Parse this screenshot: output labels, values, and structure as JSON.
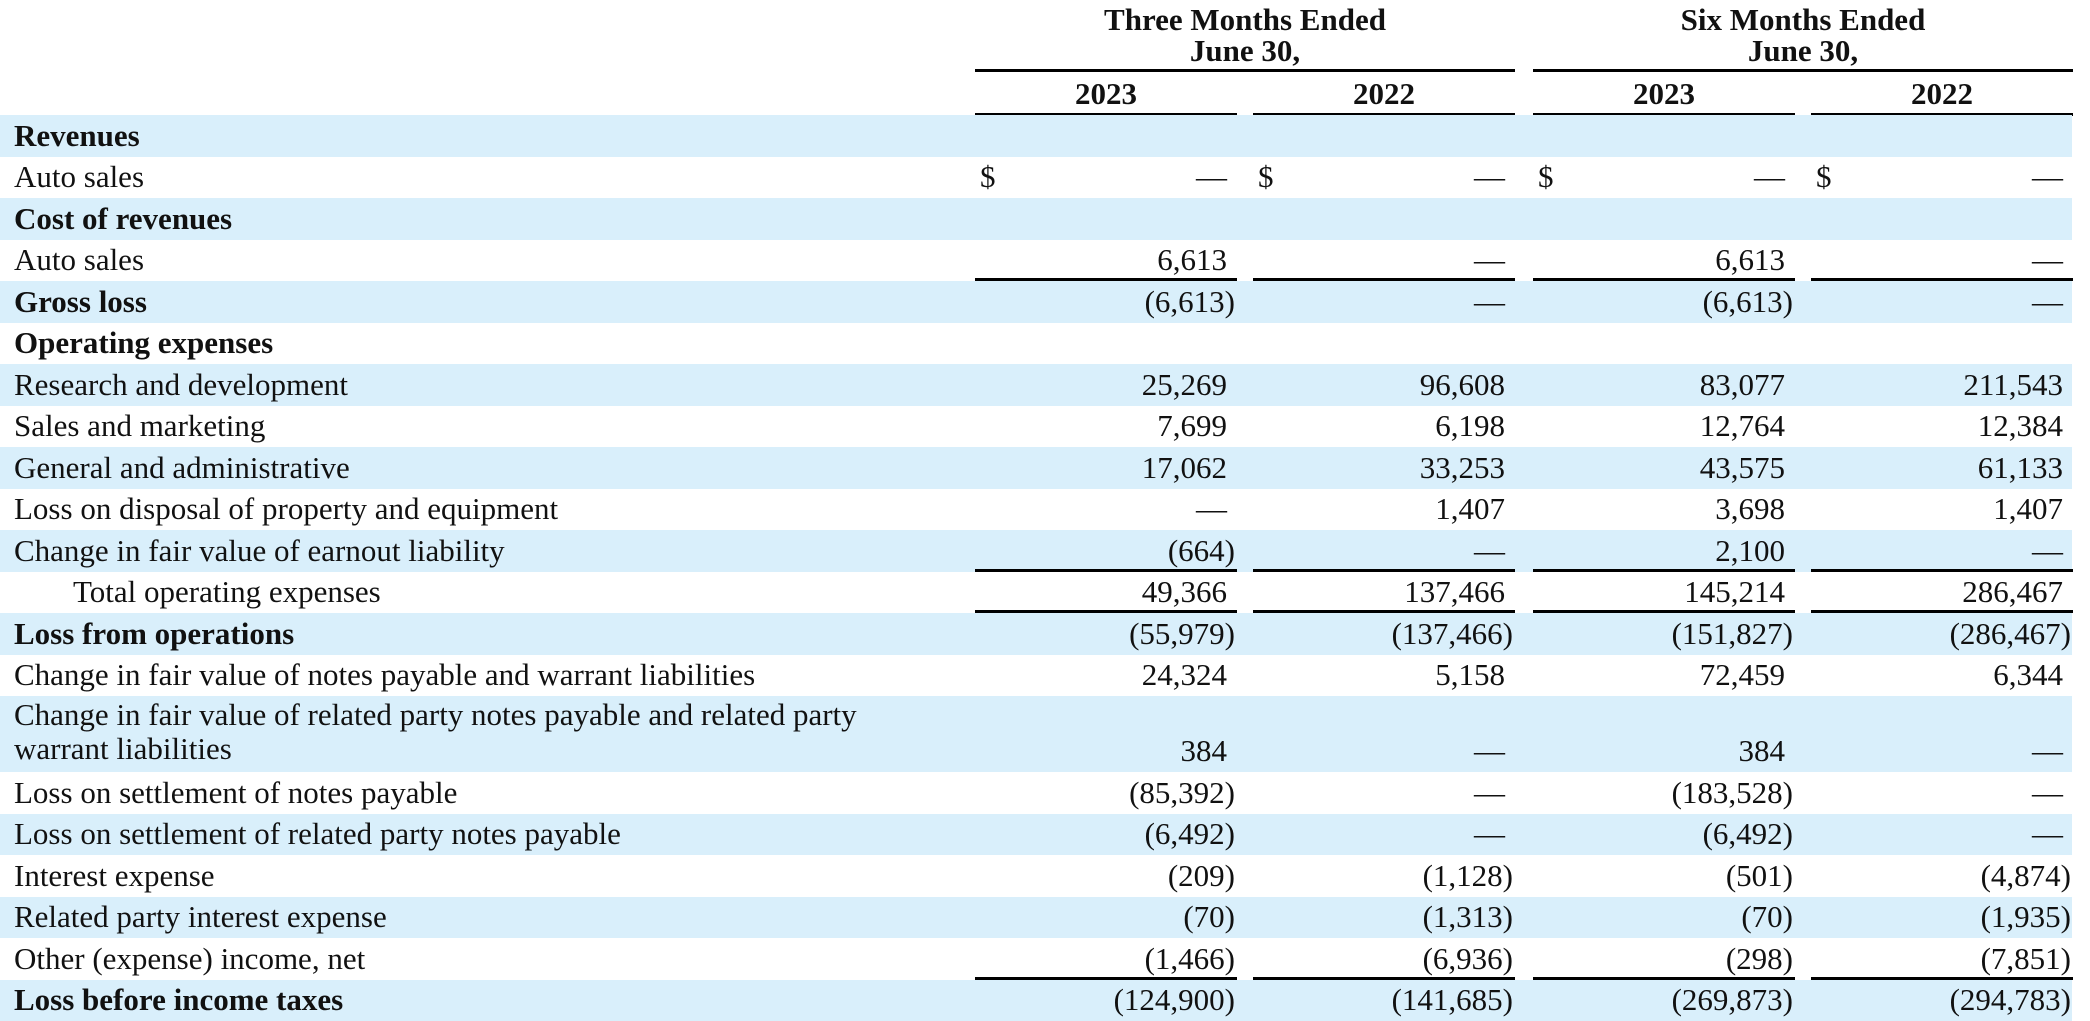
{
  "header": {
    "groups": [
      {
        "line1": "Three Months Ended",
        "line2": "June 30,"
      },
      {
        "line1": "Six Months Ended",
        "line2": "June 30,"
      }
    ],
    "years": [
      "2023",
      "2022",
      "2023",
      "2022"
    ]
  },
  "currency_symbol": "$",
  "rows": [
    {
      "label": "Revenues",
      "bold": true,
      "shade": true,
      "values": [
        "",
        "",
        "",
        ""
      ]
    },
    {
      "label": "Auto sales",
      "shade": false,
      "dollar": true,
      "values": [
        "—",
        "—",
        "—",
        "—"
      ]
    },
    {
      "label": "Cost of revenues",
      "bold": true,
      "shade": true,
      "values": [
        "",
        "",
        "",
        ""
      ]
    },
    {
      "label": "Auto sales",
      "shade": false,
      "values": [
        "6,613",
        "—",
        "6,613",
        "—"
      ],
      "rule_below": true
    },
    {
      "label": "Gross loss",
      "bold": true,
      "shade": true,
      "values": [
        "(6,613)",
        "—",
        "(6,613)",
        "—"
      ]
    },
    {
      "label": "Operating expenses",
      "bold": true,
      "shade": false,
      "values": [
        "",
        "",
        "",
        ""
      ]
    },
    {
      "label": "Research and development",
      "shade": true,
      "values": [
        "25,269",
        "96,608",
        "83,077",
        "211,543"
      ]
    },
    {
      "label": "Sales and marketing",
      "shade": false,
      "values": [
        "7,699",
        "6,198",
        "12,764",
        "12,384"
      ]
    },
    {
      "label": "General and administrative",
      "shade": true,
      "values": [
        "17,062",
        "33,253",
        "43,575",
        "61,133"
      ]
    },
    {
      "label": "Loss on disposal of property and equipment",
      "shade": false,
      "values": [
        "—",
        "1,407",
        "3,698",
        "1,407"
      ]
    },
    {
      "label": "Change in fair value of earnout liability",
      "shade": true,
      "values": [
        "(664)",
        "—",
        "2,100",
        "—"
      ],
      "rule_below": true
    },
    {
      "label": "Total operating expenses",
      "indent": true,
      "shade": false,
      "values": [
        "49,366",
        "137,466",
        "145,214",
        "286,467"
      ],
      "rule_below": true
    },
    {
      "label": "Loss from operations",
      "bold": true,
      "shade": true,
      "values": [
        "(55,979)",
        "(137,466)",
        "(151,827)",
        "(286,467)"
      ]
    },
    {
      "label": "Change in fair value of notes payable and warrant liabilities",
      "shade": false,
      "values": [
        "24,324",
        "5,158",
        "72,459",
        "6,344"
      ]
    },
    {
      "label": "Change in fair value of related party notes payable and related party warrant liabilities",
      "shade": true,
      "tall": true,
      "values": [
        "384",
        "—",
        "384",
        "—"
      ]
    },
    {
      "label": "Loss on settlement of notes payable",
      "shade": false,
      "values": [
        "(85,392)",
        "—",
        "(183,528)",
        "—"
      ]
    },
    {
      "label": "Loss on settlement of related party notes payable",
      "shade": true,
      "values": [
        "(6,492)",
        "—",
        "(6,492)",
        "—"
      ]
    },
    {
      "label": "Interest expense",
      "shade": false,
      "values": [
        "(209)",
        "(1,128)",
        "(501)",
        "(4,874)"
      ]
    },
    {
      "label": "Related party interest expense",
      "shade": true,
      "values": [
        "(70)",
        "(1,313)",
        "(70)",
        "(1,935)"
      ]
    },
    {
      "label": "Other (expense) income, net",
      "shade": false,
      "values": [
        "(1,466)",
        "(6,936)",
        "(298)",
        "(7,851)"
      ],
      "rule_below": true
    },
    {
      "label": "Loss before income taxes",
      "bold": true,
      "shade": true,
      "values": [
        "(124,900)",
        "(141,685)",
        "(269,873)",
        "(294,783)"
      ]
    }
  ]
}
